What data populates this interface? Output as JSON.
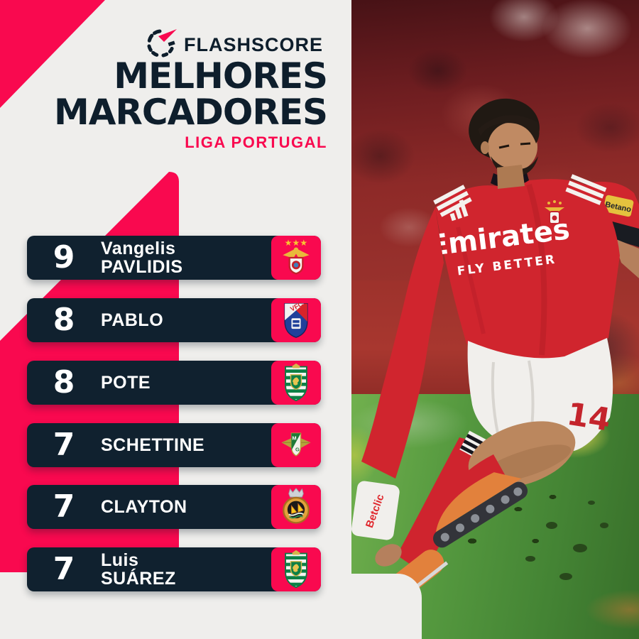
{
  "brand": {
    "name": "FLASHSCORE"
  },
  "header": {
    "title_line1": "MELHORES",
    "title_line2": "MARCADORES",
    "subtitle": "LIGA PORTUGAL"
  },
  "colors": {
    "pink": "#f9094f",
    "navy": "#10212f",
    "background": "#efeeec",
    "text_white": "#ffffff"
  },
  "scorers": [
    {
      "goals": "9",
      "name_line1": "Vangelis",
      "name_line2": "PAVLIDIS",
      "badge": "benfica-badge"
    },
    {
      "goals": "8",
      "name_line1": "PABLO",
      "name_line2": "",
      "badge": "gil-vicente-badge"
    },
    {
      "goals": "8",
      "name_line1": "POTE",
      "name_line2": "",
      "badge": "sporting-badge"
    },
    {
      "goals": "7",
      "name_line1": "SCHETTINE",
      "name_line2": "",
      "badge": "moreirense-badge"
    },
    {
      "goals": "7",
      "name_line1": "CLAYTON",
      "name_line2": "",
      "badge": "rio-ave-badge"
    },
    {
      "goals": "7",
      "name_line1": "Luis",
      "name_line2": "SUÁREZ",
      "badge": "sporting-badge"
    }
  ],
  "photo": {
    "jersey_sponsor_line1": "Emirates",
    "jersey_sponsor_line2": "FLY BETTER",
    "left_sleeve_patch": "Betclic",
    "right_sleeve_patch": "Betano",
    "shorts_number": "14"
  }
}
